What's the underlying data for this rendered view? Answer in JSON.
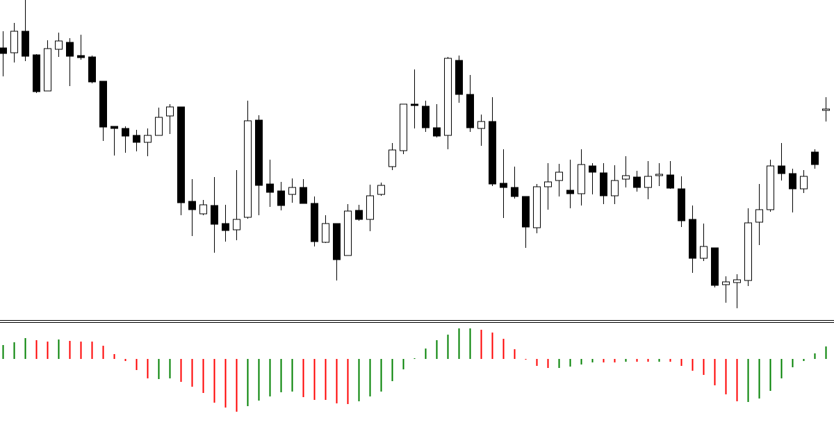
{
  "chart_data": [
    {
      "type": "candlestick",
      "up_color": "#ffffff",
      "down_color": "#000000",
      "ylim": [
        0,
        460
      ],
      "open": [
        391,
        384,
        415,
        381,
        329,
        389,
        399,
        380,
        378,
        343,
        278,
        275,
        265,
        255,
        265,
        293,
        306,
        170,
        152,
        164,
        138,
        129,
        147,
        287,
        195,
        185,
        180,
        190,
        167,
        111,
        138,
        92,
        157,
        144,
        180,
        220,
        243,
        310,
        307,
        276,
        265,
        373,
        324,
        275,
        285,
        196,
        190,
        177,
        132,
        191,
        200,
        186,
        181,
        221,
        211,
        178,
        202,
        205,
        190,
        207,
        208,
        188,
        144,
        88,
        103,
        50,
        53,
        56,
        140,
        158,
        221,
        210,
        188,
        241,
        301
      ],
      "high": [
        415,
        427,
        460,
        382,
        402,
        413,
        405,
        410,
        380,
        343,
        278,
        278,
        273,
        275,
        305,
        310,
        306,
        202,
        172,
        205,
        165,
        215,
        315,
        294,
        230,
        198,
        203,
        202,
        177,
        150,
        138,
        166,
        165,
        194,
        197,
        254,
        310,
        360,
        315,
        310,
        378,
        380,
        352,
        295,
        320,
        245,
        220,
        177,
        195,
        225,
        224,
        230,
        245,
        225,
        225,
        222,
        235,
        214,
        228,
        225,
        228,
        206,
        164,
        138,
        103,
        62,
        65,
        160,
        195,
        230,
        254,
        217,
        215,
        245,
        320
      ],
      "low": [
        350,
        370,
        372,
        326,
        329,
        378,
        336,
        374,
        340,
        257,
        236,
        240,
        242,
        235,
        265,
        267,
        150,
        120,
        150,
        96,
        112,
        114,
        145,
        150,
        162,
        157,
        168,
        167,
        105,
        110,
        56,
        92,
        142,
        127,
        178,
        215,
        238,
        275,
        270,
        262,
        245,
        312,
        270,
        250,
        192,
        146,
        174,
        103,
        124,
        158,
        177,
        160,
        164,
        180,
        166,
        166,
        190,
        184,
        173,
        192,
        188,
        133,
        67,
        84,
        46,
        24,
        16,
        48,
        107,
        155,
        200,
        154,
        182,
        217,
        285
      ],
      "close": [
        383,
        415,
        379,
        328,
        390,
        401,
        379,
        377,
        342,
        277,
        275,
        264,
        255,
        265,
        291,
        306,
        168,
        158,
        165,
        137,
        128,
        144,
        286,
        193,
        183,
        164,
        190,
        167,
        112,
        138,
        86,
        156,
        144,
        178,
        193,
        244,
        310,
        308,
        276,
        264,
        376,
        324,
        276,
        285,
        195,
        190,
        177,
        133,
        191,
        198,
        212,
        181,
        223,
        212,
        178,
        200,
        207,
        190,
        206,
        209,
        189,
        142,
        88,
        105,
        49,
        54,
        57,
        139,
        158,
        221,
        210,
        188,
        206,
        223,
        303
      ]
    },
    {
      "type": "bar",
      "ylim": [
        -111,
        52
      ],
      "values": [
        20,
        24,
        30,
        27,
        25,
        28,
        26,
        25,
        25,
        19,
        7,
        -3,
        -16,
        -28,
        -29,
        -28,
        -33,
        -40,
        -49,
        -63,
        -70,
        -76,
        -68,
        -60,
        -54,
        -48,
        -47,
        -55,
        -59,
        -59,
        -64,
        -65,
        -61,
        -54,
        -47,
        -32,
        -15,
        1,
        15,
        27,
        35,
        44,
        44,
        42,
        38,
        29,
        14,
        -1,
        -10,
        -13,
        -13,
        -11,
        -8,
        -5,
        -5,
        -5,
        -4,
        -4,
        -4,
        -4,
        -4,
        -10,
        -17,
        -23,
        -38,
        -51,
        -61,
        -62,
        -57,
        -46,
        -28,
        -12,
        -3,
        8,
        18
      ],
      "colors": [
        "#008000",
        "#008000",
        "#008000",
        "#ff0000",
        "#ff0000",
        "#008000",
        "#ff0000",
        "#ff0000",
        "#ff0000",
        "#ff0000",
        "#ff0000",
        "#ff0000",
        "#ff0000",
        "#ff0000",
        "#008000",
        "#008000",
        "#ff0000",
        "#ff0000",
        "#ff0000",
        "#ff0000",
        "#ff0000",
        "#ff0000",
        "#008000",
        "#008000",
        "#008000",
        "#008000",
        "#008000",
        "#ff0000",
        "#ff0000",
        "#ff0000",
        "#ff0000",
        "#ff0000",
        "#008000",
        "#008000",
        "#008000",
        "#008000",
        "#008000",
        "#008000",
        "#008000",
        "#008000",
        "#008000",
        "#008000",
        "#008000",
        "#ff0000",
        "#ff0000",
        "#ff0000",
        "#ff0000",
        "#ff0000",
        "#ff0000",
        "#ff0000",
        "#008000",
        "#008000",
        "#008000",
        "#008000",
        "#ff0000",
        "#ff0000",
        "#008000",
        "#ff0000",
        "#ff0000",
        "#008000",
        "#ff0000",
        "#ff0000",
        "#ff0000",
        "#ff0000",
        "#ff0000",
        "#ff0000",
        "#ff0000",
        "#008000",
        "#008000",
        "#008000",
        "#008000",
        "#008000",
        "#008000",
        "#008000",
        "#008000"
      ]
    }
  ]
}
